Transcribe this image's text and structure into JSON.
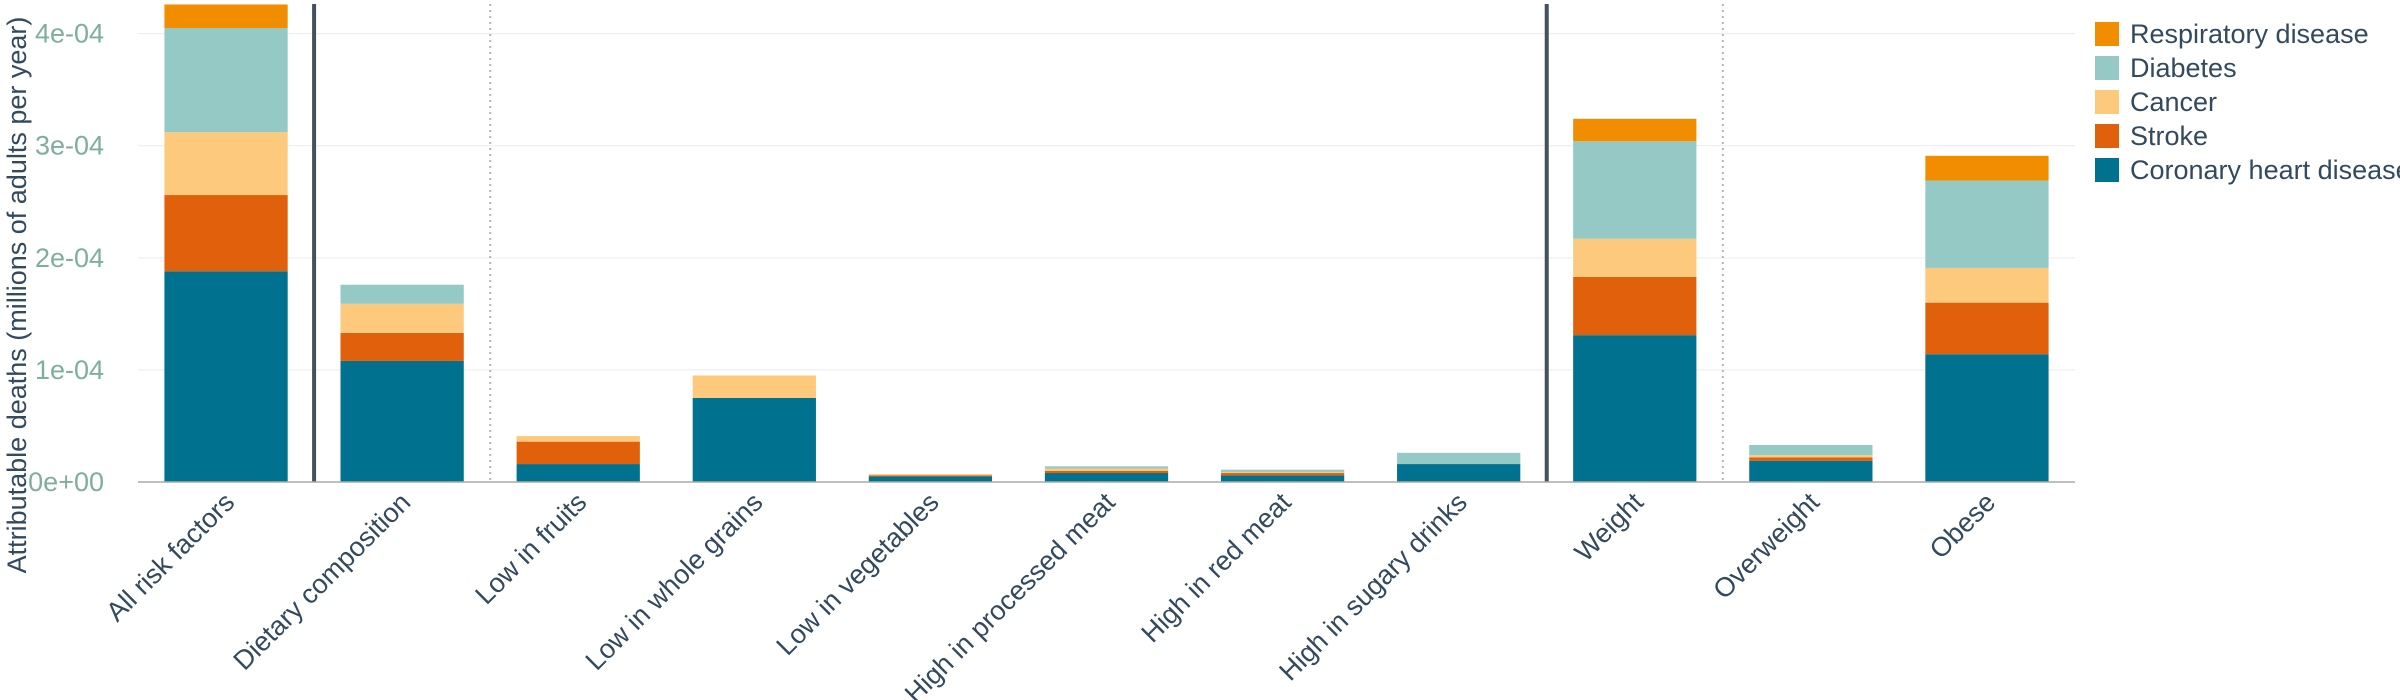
{
  "chart_data": {
    "type": "bar",
    "stacked": true,
    "ylabel": "Attributable deaths (millions of adults per year)",
    "xlabel": "",
    "ylim": [
      0,
      0.00043
    ],
    "yticks": [
      0,
      0.0001,
      0.0002,
      0.0003,
      0.0004
    ],
    "ytick_labels": [
      "0e+00",
      "1e-04",
      "2e-04",
      "3e-04",
      "4e-04"
    ],
    "grid": true,
    "legend_position": "top-right",
    "categories": [
      "All risk factors",
      "Dietary composition",
      "Low in fruits",
      "Low in whole grains",
      "Low in vegetables",
      "High in processed meat",
      "High in red meat",
      "High in sugary drinks",
      "Weight",
      "Overweight",
      "Obese"
    ],
    "separators": [
      {
        "after": 0,
        "style": "solid"
      },
      {
        "after": 1,
        "style": "dotted"
      },
      {
        "after": 7,
        "style": "solid"
      },
      {
        "after": 8,
        "style": "dotted"
      }
    ],
    "series": [
      {
        "name": "Coronary heart disease",
        "color": "#00728f",
        "values": [
          0.000188,
          0.000108,
          1.6e-05,
          7.5e-05,
          5e-06,
          8e-06,
          6e-06,
          1.6e-05,
          0.000131,
          1.9e-05,
          0.000114
        ]
      },
      {
        "name": "Stroke",
        "color": "#e0600b",
        "values": [
          6.8e-05,
          2.5e-05,
          2e-05,
          0.0,
          1e-06,
          2e-06,
          2e-06,
          0.0,
          5.2e-05,
          3e-06,
          4.6e-05
        ]
      },
      {
        "name": "Cancer",
        "color": "#fdc97c",
        "values": [
          5.6e-05,
          2.6e-05,
          5e-06,
          2e-05,
          1e-06,
          2e-06,
          1e-06,
          0.0,
          3.4e-05,
          2e-06,
          3.1e-05
        ]
      },
      {
        "name": "Diabetes",
        "color": "#94c9c6",
        "values": [
          9.3e-05,
          1.7e-05,
          0.0,
          0.0,
          0.0,
          2e-06,
          2e-06,
          1e-05,
          8.7e-05,
          9e-06,
          7.8e-05
        ]
      },
      {
        "name": "Respiratory disease",
        "color": "#f28d00",
        "values": [
          2.1e-05,
          0.0,
          0.0,
          0.0,
          0.0,
          0.0,
          0.0,
          0.0,
          2e-05,
          0.0,
          2.2e-05
        ]
      }
    ]
  }
}
